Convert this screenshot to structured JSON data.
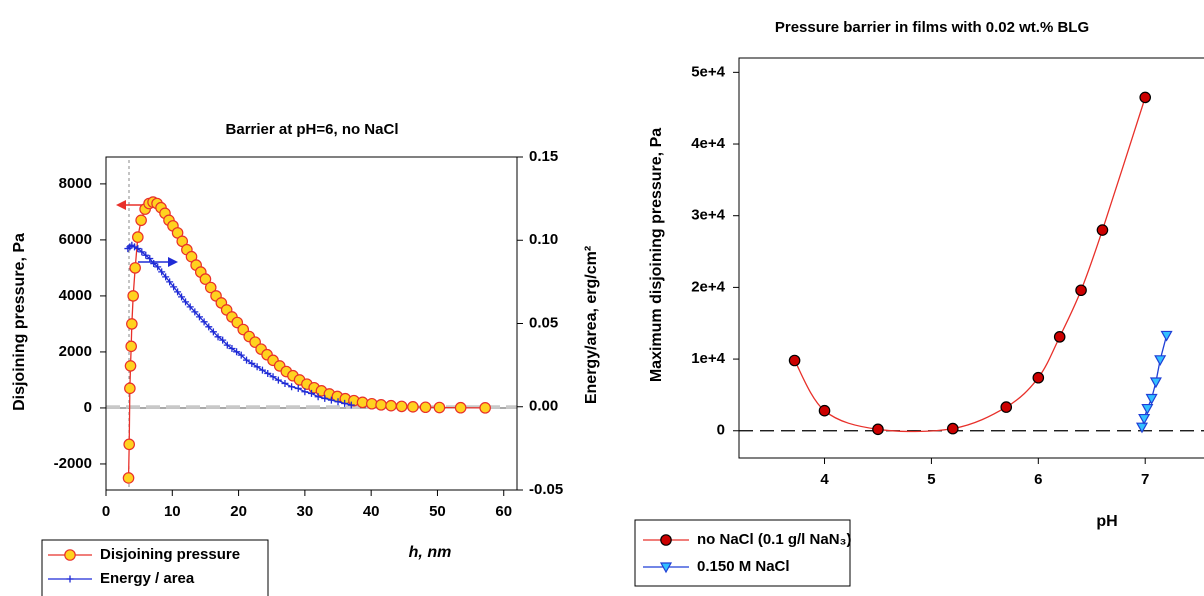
{
  "chart_data": [
    {
      "type": "line",
      "title": "Barrier at pH=6, no NaCl",
      "xlabel": "h, nm",
      "ylabel": "Disjoining pressure, Pa",
      "y2label": "Energy/area, erg/cm²",
      "xlim": [
        0,
        62
      ],
      "xticks": [
        0,
        10,
        20,
        30,
        40,
        50,
        60
      ],
      "ylim": [
        -2930,
        8960
      ],
      "yticks": [
        -2000,
        0,
        2000,
        4000,
        6000,
        8000
      ],
      "y2lim": [
        -0.05,
        0.15
      ],
      "y2ticks": [
        -0.05,
        {
          "value": 0,
          "label": "0.00"
        },
        0.05,
        {
          "value": 0.1,
          "label": "0.10"
        },
        0.15
      ],
      "series": [
        {
          "name": "Disjoining pressure",
          "color": "#e8302a",
          "marker": "circle",
          "marker_fill": "#ffd21f",
          "x": [
            3.4,
            3.5,
            3.6,
            3.7,
            3.8,
            3.9,
            4.1,
            4.4,
            4.8,
            5.3,
            5.9,
            6.5,
            7.1,
            7.7,
            8.3,
            8.9,
            9.5,
            10.1,
            10.8,
            11.5,
            12.2,
            12.9,
            13.6,
            14.3,
            15,
            15.8,
            16.6,
            17.4,
            18.2,
            19,
            19.8,
            20.7,
            21.6,
            22.5,
            23.4,
            24.3,
            25.2,
            26.2,
            27.2,
            28.2,
            29.2,
            30.3,
            31.4,
            32.5,
            33.7,
            34.9,
            36.1,
            37.4,
            38.7,
            40.1,
            41.5,
            43,
            44.6,
            46.3,
            48.2,
            50.3,
            53.5,
            57.2
          ],
          "values": [
            -2500,
            -1300,
            700,
            1500,
            2200,
            3000,
            4000,
            5000,
            6100,
            6700,
            7100,
            7300,
            7350,
            7300,
            7150,
            6950,
            6700,
            6500,
            6250,
            5950,
            5650,
            5400,
            5100,
            4850,
            4600,
            4300,
            4000,
            3750,
            3500,
            3250,
            3050,
            2800,
            2550,
            2350,
            2100,
            1900,
            1700,
            1500,
            1300,
            1150,
            1000,
            850,
            720,
            610,
            500,
            410,
            330,
            260,
            200,
            150,
            110,
            80,
            55,
            40,
            25,
            15,
            8,
            3
          ]
        },
        {
          "name": "Energy / area",
          "color": "#1f2bd6",
          "marker": "plus",
          "axis": "y2",
          "x": [
            3.3,
            3.6,
            3.9,
            4.3,
            4.8,
            5.4,
            6,
            6.6,
            7.2,
            7.8,
            8.4,
            9,
            9.6,
            10.2,
            10.8,
            11.4,
            12,
            12.7,
            13.4,
            14.1,
            14.8,
            15.5,
            16.2,
            16.9,
            17.6,
            18.3,
            19,
            19.7,
            20.4,
            21.2,
            22,
            22.8,
            23.6,
            24.4,
            25.2,
            26,
            27,
            28,
            29,
            30,
            31,
            32,
            33,
            34,
            35,
            36,
            37
          ],
          "values": [
            0.095,
            0.096,
            0.097,
            0.096,
            0.095,
            0.093,
            0.091,
            0.089,
            0.086,
            0.084,
            0.081,
            0.078,
            0.075,
            0.072,
            0.069,
            0.066,
            0.063,
            0.06,
            0.057,
            0.054,
            0.051,
            0.048,
            0.045,
            0.042,
            0.04,
            0.037,
            0.035,
            0.033,
            0.031,
            0.028,
            0.026,
            0.024,
            0.022,
            0.02,
            0.018,
            0.016,
            0.014,
            0.012,
            0.011,
            0.009,
            0.008,
            0.006,
            0.005,
            0.004,
            0.003,
            0.002,
            0.001
          ]
        }
      ]
    },
    {
      "type": "line",
      "title": "Pressure barrier in films with 0.02 wt.% BLG",
      "xlabel": "pH",
      "ylabel": "Maximum disjoining pressure, Pa",
      "xlim": [
        3.2,
        7.55
      ],
      "xticks": [
        4,
        5,
        6,
        7
      ],
      "ylim": [
        -3800,
        52000
      ],
      "yticks": [
        0,
        {
          "value": 10000,
          "label": "1e+4"
        },
        {
          "value": 20000,
          "label": "2e+4"
        },
        {
          "value": 30000,
          "label": "3e+4"
        },
        {
          "value": 40000,
          "label": "4e+4"
        },
        {
          "value": 50000,
          "label": "5e+4"
        }
      ],
      "series": [
        {
          "name": "no NaCl (0.1 g/l NaN₃)",
          "color": "#e8302a",
          "marker": "circle",
          "marker_fill": "#cc0000",
          "smooth": true,
          "x": [
            3.72,
            4.0,
            4.5,
            5.2,
            5.7,
            6.0,
            6.2,
            6.4,
            6.6,
            7.0
          ],
          "values": [
            9800,
            2800,
            200,
            300,
            3300,
            7400,
            13100,
            19600,
            28000,
            46500
          ]
        },
        {
          "name": "0.150 M NaCl",
          "color": "#1f3fd6",
          "marker": "triangle-down",
          "marker_fill": "#33c0ff",
          "x": [
            6.97,
            6.99,
            7.02,
            7.06,
            7.1,
            7.14,
            7.2
          ],
          "values": [
            500,
            1700,
            3100,
            4500,
            6800,
            9900,
            13300
          ]
        }
      ]
    }
  ]
}
